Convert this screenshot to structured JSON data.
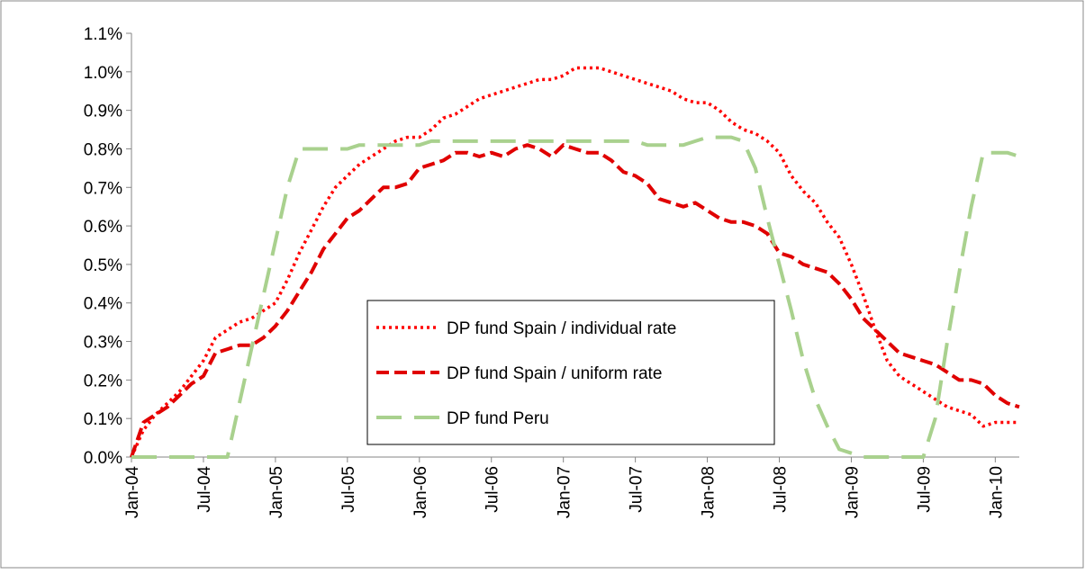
{
  "chart_data": {
    "type": "line",
    "categories": [
      "Jan-04",
      null,
      null,
      null,
      null,
      null,
      "Jul-04",
      null,
      null,
      null,
      null,
      null,
      "Jan-05",
      null,
      null,
      null,
      null,
      null,
      "Jul-05",
      null,
      null,
      null,
      null,
      null,
      "Jan-06",
      null,
      null,
      null,
      null,
      null,
      "Jul-06",
      null,
      null,
      null,
      null,
      null,
      "Jan-07",
      null,
      null,
      null,
      null,
      null,
      "Jul-07",
      null,
      null,
      null,
      null,
      null,
      "Jan-08",
      null,
      null,
      null,
      null,
      null,
      "Jul-08",
      null,
      null,
      null,
      null,
      null,
      "Jan-09",
      null,
      null,
      null,
      null,
      null,
      "Jul-09",
      null,
      null,
      null,
      null,
      null,
      "Jan-10",
      null,
      null
    ],
    "series": [
      {
        "name": "DP fund Spain / individual rate",
        "color": "#ff0000",
        "dash": "dotted",
        "values": [
          0,
          0.07,
          0.11,
          0.14,
          0.17,
          0.21,
          0.25,
          0.31,
          0.33,
          0.35,
          0.36,
          0.38,
          0.4,
          0.46,
          0.53,
          0.59,
          0.65,
          0.7,
          0.73,
          0.76,
          0.78,
          0.8,
          0.82,
          0.83,
          0.83,
          0.85,
          0.88,
          0.89,
          0.91,
          0.93,
          0.94,
          0.95,
          0.96,
          0.97,
          0.98,
          0.98,
          0.99,
          1.01,
          1.01,
          1.01,
          1.0,
          0.99,
          0.98,
          0.97,
          0.96,
          0.95,
          0.93,
          0.92,
          0.92,
          0.9,
          0.87,
          0.85,
          0.84,
          0.82,
          0.79,
          0.73,
          0.69,
          0.66,
          0.61,
          0.57,
          0.5,
          0.42,
          0.33,
          0.25,
          0.21,
          0.19,
          0.17,
          0.15,
          0.13,
          0.12,
          0.11,
          0.08,
          0.09,
          0.09,
          0.09
        ]
      },
      {
        "name": "DP fund Spain / uniform rate",
        "color": "#e00000",
        "dash": "dashed",
        "values": [
          0,
          0.09,
          0.11,
          0.13,
          0.16,
          0.19,
          0.21,
          0.27,
          0.28,
          0.29,
          0.29,
          0.31,
          0.34,
          0.38,
          0.43,
          0.48,
          0.54,
          0.58,
          0.62,
          0.64,
          0.67,
          0.7,
          0.7,
          0.71,
          0.75,
          0.76,
          0.77,
          0.79,
          0.79,
          0.78,
          0.79,
          0.78,
          0.8,
          0.81,
          0.8,
          0.78,
          0.81,
          0.8,
          0.79,
          0.79,
          0.77,
          0.74,
          0.73,
          0.71,
          0.67,
          0.66,
          0.65,
          0.66,
          0.64,
          0.62,
          0.61,
          0.61,
          0.6,
          0.58,
          0.53,
          0.52,
          0.5,
          0.49,
          0.48,
          0.45,
          0.41,
          0.36,
          0.33,
          0.3,
          0.27,
          0.26,
          0.25,
          0.24,
          0.22,
          0.2,
          0.2,
          0.19,
          0.16,
          0.14,
          0.13
        ]
      },
      {
        "name": "DP fund Peru",
        "color": "#a9d18e",
        "dash": "long-dashed",
        "values": [
          0,
          0,
          0,
          0,
          0,
          0,
          0,
          0,
          0,
          0.14,
          0.28,
          0.42,
          0.56,
          0.7,
          0.8,
          0.8,
          0.8,
          0.8,
          0.8,
          0.81,
          0.81,
          0.81,
          0.81,
          0.81,
          0.81,
          0.82,
          0.82,
          0.82,
          0.82,
          0.82,
          0.82,
          0.82,
          0.82,
          0.82,
          0.82,
          0.82,
          0.82,
          0.82,
          0.82,
          0.82,
          0.82,
          0.82,
          0.82,
          0.81,
          0.81,
          0.81,
          0.81,
          0.82,
          0.83,
          0.83,
          0.83,
          0.82,
          0.75,
          0.62,
          0.5,
          0.38,
          0.25,
          0.15,
          0.08,
          0.02,
          0.01,
          0,
          0,
          0,
          0,
          0,
          0,
          0.1,
          0.3,
          0.48,
          0.65,
          0.79,
          0.79,
          0.79,
          0.78
        ]
      }
    ],
    "ylim": [
      0,
      1.1
    ],
    "yticks": [
      {
        "value": 0,
        "label": "0.0%"
      },
      {
        "value": 0.1,
        "label": "0.1%"
      },
      {
        "value": 0.2,
        "label": "0.2%"
      },
      {
        "value": 0.3,
        "label": "0.3%"
      },
      {
        "value": 0.4,
        "label": "0.4%"
      },
      {
        "value": 0.5,
        "label": "0.5%"
      },
      {
        "value": 0.6,
        "label": "0.6%"
      },
      {
        "value": 0.7,
        "label": "0.7%"
      },
      {
        "value": 0.8,
        "label": "0.8%"
      },
      {
        "value": 0.9,
        "label": "0.9%"
      },
      {
        "value": 1.0,
        "label": "1.0%"
      },
      {
        "value": 1.1,
        "label": "1.1%"
      }
    ],
    "grid": false,
    "legend": "center"
  }
}
